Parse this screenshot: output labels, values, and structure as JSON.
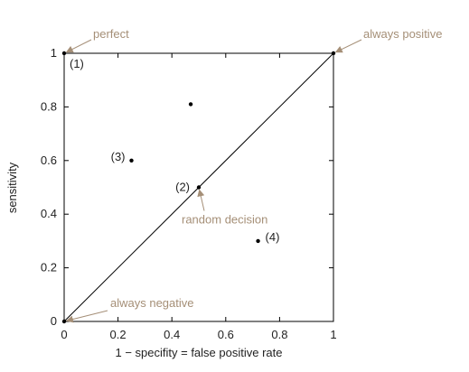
{
  "chart_data": {
    "type": "scatter",
    "title": "",
    "xlabel": "1 − specifity = false positive rate",
    "ylabel": "sensitivity",
    "xlim": [
      0,
      1
    ],
    "ylim": [
      0,
      1
    ],
    "grid": false,
    "x_ticks": [
      {
        "value": 0,
        "label": "0"
      },
      {
        "value": 0.2,
        "label": "0.2"
      },
      {
        "value": 0.4,
        "label": "0.4"
      },
      {
        "value": 0.6,
        "label": "0.6"
      },
      {
        "value": 0.8,
        "label": "0.8"
      },
      {
        "value": 1,
        "label": "1"
      }
    ],
    "y_ticks": [
      {
        "value": 0,
        "label": "0"
      },
      {
        "value": 0.2,
        "label": "0.2"
      },
      {
        "value": 0.4,
        "label": "0.4"
      },
      {
        "value": 0.6,
        "label": "0.6"
      },
      {
        "value": 0.8,
        "label": "0.8"
      },
      {
        "value": 1,
        "label": "1"
      }
    ],
    "diagonal": {
      "from": [
        0,
        0
      ],
      "to": [
        1,
        1
      ]
    },
    "points": [
      {
        "x": 0,
        "y": 1,
        "label": "(1)"
      },
      {
        "x": 0.5,
        "y": 0.5,
        "label": "(2)"
      },
      {
        "x": 0.25,
        "y": 0.6,
        "label": "(3)"
      },
      {
        "x": 0.72,
        "y": 0.3,
        "label": "(4)"
      },
      {
        "x": 0.47,
        "y": 0.81,
        "label": ""
      },
      {
        "x": 1,
        "y": 1,
        "label": ""
      },
      {
        "x": 0,
        "y": 0,
        "label": ""
      }
    ],
    "annotations": [
      {
        "text": "perfect",
        "target": [
          0,
          1
        ]
      },
      {
        "text": "always positive",
        "target": [
          1,
          1
        ]
      },
      {
        "text": "random decision",
        "target": [
          0.5,
          0.5
        ]
      },
      {
        "text": "always negative",
        "target": [
          0,
          0
        ]
      }
    ],
    "annotation_color": "#a58f77",
    "point_color": "#000000"
  }
}
